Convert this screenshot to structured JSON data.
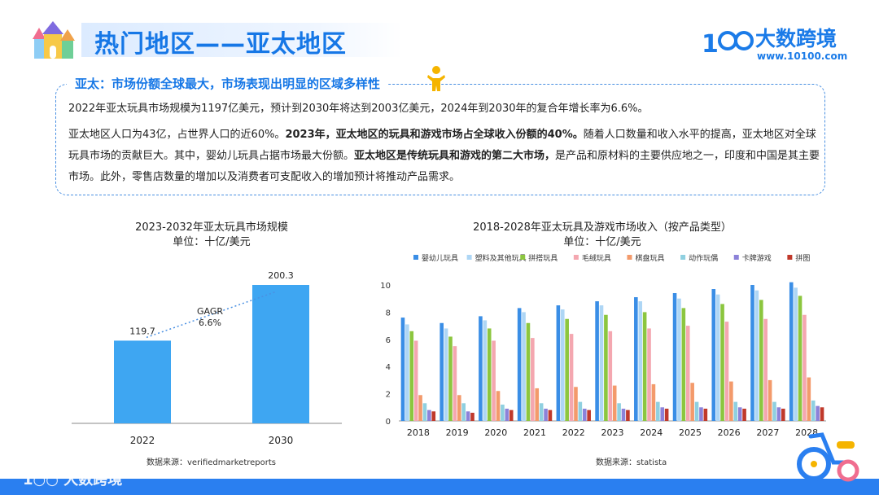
{
  "header": {
    "title": "热门地区——亚太地区",
    "logo_text": "大数跨境",
    "logo_url": "www.10100.com"
  },
  "info": {
    "heading": "亚太：市场份额全球最大，市场表现出明显的区域多样性",
    "p1": "2022年亚太玩具市场规模为1197亿美元，预计到2030年将达到2003亿美元，2024年到2030年的复合年增长率为6.6%。",
    "p2_parts": [
      "亚太地区人口为43亿，占世界人口的近60%。",
      "2023年，亚太地区的玩具和游戏市场占全球收入份额的40%。",
      "随着人口数量和收入水平的提高，亚太地区对全球玩具市场的贡献巨大。其中，婴幼儿玩具占据市场最大份额。",
      "亚太地区是传统玩具和游戏的第二大市场，",
      "是产品和原材料的主要供应地之一，印度和中国是其主要市场。此外，零售店数量的增加以及消费者可支配收入的增加预计将推动产品需求。"
    ]
  },
  "footer": {
    "logo_text": "大数跨境"
  },
  "colors": {
    "accent": "#1677e6",
    "bar_blue": "#3ea6f2"
  },
  "chart_data": [
    {
      "type": "bar",
      "title": "2023-2032年亚太玩具市场规模",
      "subtitle": "单位：十亿/美元",
      "categories": [
        "2022",
        "2030"
      ],
      "values": [
        119.7,
        200.3
      ],
      "annotation": "GAGR\n6.6%",
      "source": "数据来源：verifiedmarketreports",
      "color": "#3ea6f2"
    },
    {
      "type": "bar",
      "title": "2018-2028年亚太玩具及游戏市场收入（按产品类型）",
      "subtitle": "单位：十亿/美元",
      "categories": [
        "2018",
        "2019",
        "2020",
        "2021",
        "2022",
        "2023",
        "2024",
        "2025",
        "2026",
        "2027",
        "2028"
      ],
      "ylim": [
        0,
        10
      ],
      "yticks": [
        0,
        2,
        4,
        6,
        8,
        10
      ],
      "legend_position": "top",
      "series": [
        {
          "name": "婴幼儿玩具",
          "color": "#3a8ee6",
          "values": [
            7.6,
            7.2,
            7.7,
            8.3,
            8.5,
            8.8,
            9.1,
            9.4,
            9.7,
            10.0,
            10.2
          ]
        },
        {
          "name": "塑料及其他玩具",
          "color": "#aed6f5",
          "values": [
            7.1,
            6.8,
            7.4,
            8.0,
            8.2,
            8.5,
            8.8,
            9.0,
            9.3,
            9.6,
            9.8
          ]
        },
        {
          "name": "拼搭玩具",
          "color": "#8cc63f",
          "values": [
            6.6,
            6.2,
            6.8,
            7.2,
            7.5,
            7.8,
            8.0,
            8.3,
            8.6,
            8.9,
            9.2
          ]
        },
        {
          "name": "毛绒玩具",
          "color": "#f4a7b0",
          "values": [
            5.9,
            5.5,
            5.9,
            6.1,
            6.4,
            6.6,
            6.8,
            7.0,
            7.3,
            7.5,
            7.8
          ]
        },
        {
          "name": "棋盘玩具",
          "color": "#f39a6b",
          "values": [
            1.9,
            1.9,
            2.2,
            2.4,
            2.5,
            2.6,
            2.7,
            2.8,
            2.9,
            3.0,
            3.2
          ]
        },
        {
          "name": "动作玩偶",
          "color": "#8fd0e0",
          "values": [
            1.3,
            1.3,
            1.2,
            1.3,
            1.4,
            1.3,
            1.4,
            1.4,
            1.4,
            1.4,
            1.5
          ]
        },
        {
          "name": "卡牌游戏",
          "color": "#8c82d9",
          "values": [
            0.8,
            0.7,
            0.9,
            0.9,
            0.9,
            0.9,
            1.0,
            1.0,
            1.0,
            1.0,
            1.1
          ]
        },
        {
          "name": "拼图",
          "color": "#c0392b",
          "values": [
            0.7,
            0.6,
            0.8,
            0.8,
            0.8,
            0.8,
            0.9,
            0.9,
            0.9,
            0.9,
            1.0
          ]
        }
      ],
      "source": "数据来源：statista"
    }
  ]
}
